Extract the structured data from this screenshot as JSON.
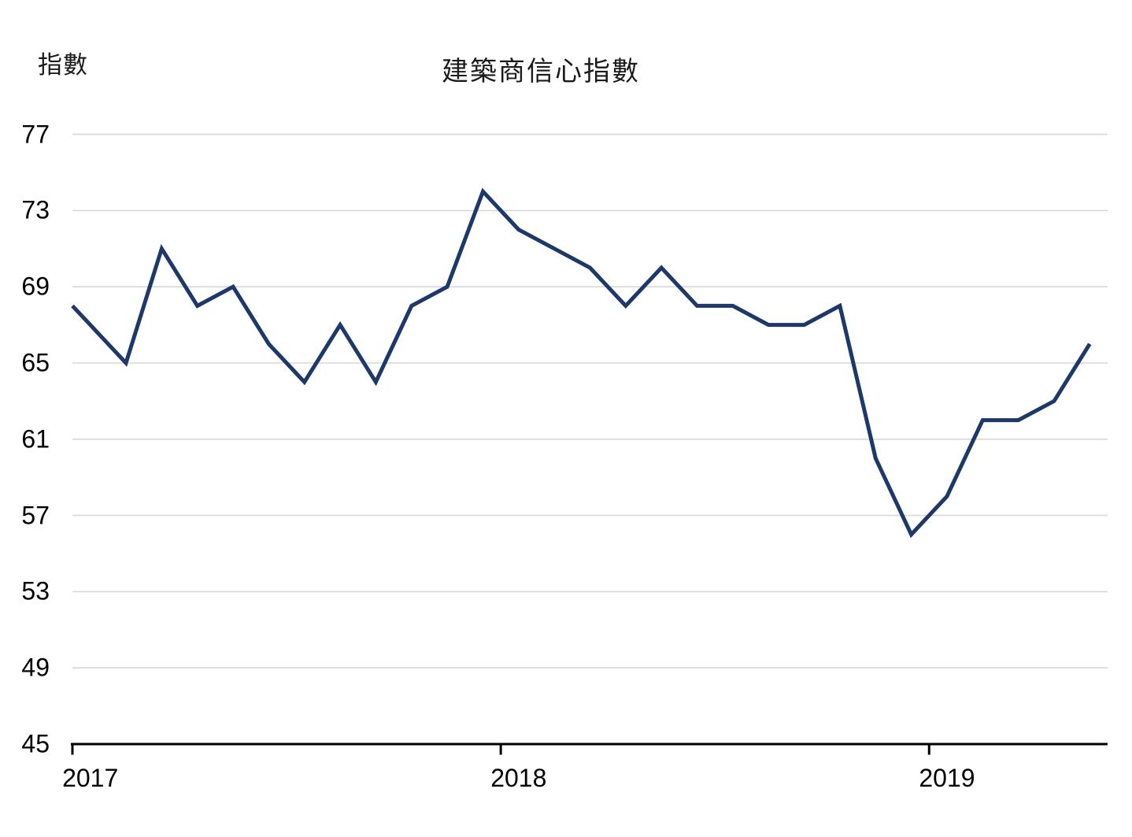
{
  "header": {
    "title": "建築商信心指數",
    "y_axis_unit_label": "指數"
  },
  "chart_data": {
    "type": "line",
    "title": "建築商信心指數",
    "ylabel": "指數",
    "xlabel": "",
    "grid": true,
    "legend": "none",
    "ylim": [
      45,
      77
    ],
    "y_ticks": [
      45,
      49,
      53,
      57,
      61,
      65,
      69,
      73,
      77
    ],
    "x_tick_years": [
      {
        "label": "2017",
        "month_index": 0
      },
      {
        "label": "2018",
        "month_index": 12
      },
      {
        "label": "2019",
        "month_index": 24
      }
    ],
    "xlim_month_offsets": [
      -0.5,
      28.5
    ],
    "x_months": [
      "2016-12 (line clipped at left plot edge)",
      "2017-01",
      "2017-02",
      "2017-03",
      "2017-04",
      "2017-05",
      "2017-06",
      "2017-07",
      "2017-08",
      "2017-09",
      "2017-10",
      "2017-11",
      "2017-12",
      "2018-01",
      "2018-02",
      "2018-03",
      "2018-04",
      "2018-05",
      "2018-06",
      "2018-07",
      "2018-08",
      "2018-09",
      "2018-10",
      "2018-11",
      "2018-12",
      "2019-01",
      "2019-02",
      "2019-03",
      "2019-04",
      "2019-05"
    ],
    "x_month_offsets": [
      -0.5,
      0,
      1,
      2,
      3,
      4,
      5,
      6,
      7,
      8,
      9,
      10,
      11,
      12,
      13,
      14,
      15,
      16,
      17,
      18,
      19,
      20,
      21,
      22,
      23,
      24,
      25,
      26,
      27,
      28
    ],
    "values": [
      68,
      67,
      65,
      71,
      68,
      69,
      66,
      64,
      67,
      64,
      68,
      69,
      74,
      72,
      71,
      70,
      68,
      70,
      68,
      68,
      67,
      67,
      68,
      60,
      56,
      58,
      62,
      62,
      63,
      66
    ],
    "colors": {
      "line": "#1d3869",
      "grid": "#d8d8d8",
      "axis": "#000000",
      "text": "#000000"
    }
  }
}
